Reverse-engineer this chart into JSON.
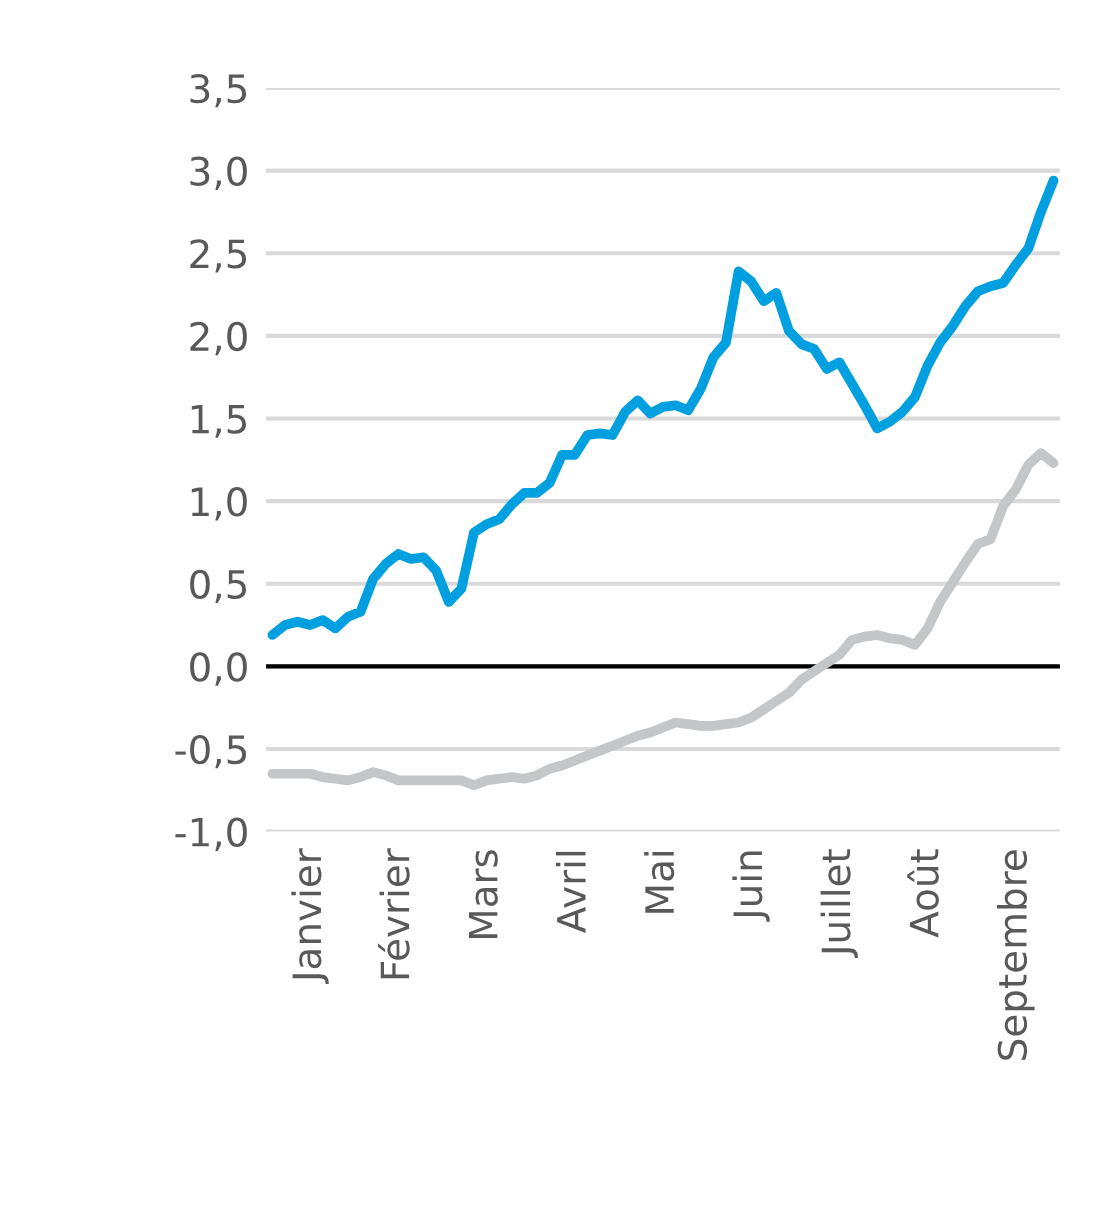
{
  "chart_data": {
    "type": "line",
    "ylim": [
      -1.0,
      3.5
    ],
    "yticks": [
      {
        "value": -1.0,
        "label": "-1,0"
      },
      {
        "value": -0.5,
        "label": "-0,5"
      },
      {
        "value": 0.0,
        "label": "0,0"
      },
      {
        "value": 0.5,
        "label": "0,5"
      },
      {
        "value": 1.0,
        "label": "1,0"
      },
      {
        "value": 1.5,
        "label": "1,5"
      },
      {
        "value": 2.0,
        "label": "2,0"
      },
      {
        "value": 2.5,
        "label": "2,5"
      },
      {
        "value": 3.0,
        "label": "3,0"
      },
      {
        "value": 3.5,
        "label": "3,5"
      }
    ],
    "categories": [
      null,
      null,
      null,
      "Janvier",
      null,
      null,
      null,
      null,
      null,
      null,
      "Février",
      null,
      null,
      null,
      null,
      null,
      null,
      "Mars",
      null,
      null,
      null,
      null,
      null,
      null,
      "Avril",
      null,
      null,
      null,
      null,
      null,
      null,
      "Mai",
      null,
      null,
      null,
      null,
      null,
      null,
      "Juin",
      null,
      null,
      null,
      null,
      null,
      null,
      "Juillet",
      null,
      null,
      null,
      null,
      null,
      null,
      "Août",
      null,
      null,
      null,
      null,
      null,
      null,
      "Septembre",
      null,
      null,
      null
    ],
    "grid": "y",
    "ref_lines": [
      {
        "axis": "y",
        "value": 0,
        "color": "#000000"
      }
    ],
    "series": [
      {
        "color": "#009fdf",
        "values": [
          0.19,
          0.25,
          0.27,
          0.25,
          0.28,
          0.23,
          0.3,
          0.33,
          0.53,
          0.62,
          0.68,
          0.65,
          0.66,
          0.58,
          0.39,
          0.47,
          0.81,
          0.86,
          0.89,
          0.98,
          1.05,
          1.05,
          1.11,
          1.28,
          1.28,
          1.4,
          1.41,
          1.4,
          1.54,
          1.61,
          1.53,
          1.57,
          1.58,
          1.55,
          1.68,
          1.87,
          1.96,
          2.39,
          2.33,
          2.21,
          2.26,
          2.03,
          1.95,
          1.92,
          1.8,
          1.84,
          1.71,
          1.58,
          1.44,
          1.48,
          1.54,
          1.63,
          1.82,
          1.96,
          2.06,
          2.18,
          2.27,
          2.3,
          2.32,
          2.43,
          2.53,
          2.75,
          2.94
        ]
      },
      {
        "color": "#c3c7c9",
        "values": [
          -0.65,
          -0.65,
          -0.65,
          -0.65,
          -0.67,
          -0.68,
          -0.69,
          -0.67,
          -0.64,
          -0.66,
          -0.69,
          -0.69,
          -0.69,
          -0.69,
          -0.69,
          -0.69,
          -0.72,
          -0.69,
          -0.68,
          -0.67,
          -0.68,
          -0.66,
          -0.62,
          -0.6,
          -0.57,
          -0.54,
          -0.51,
          -0.48,
          -0.45,
          -0.42,
          -0.4,
          -0.37,
          -0.34,
          -0.35,
          -0.36,
          -0.36,
          -0.35,
          -0.34,
          -0.31,
          -0.26,
          -0.21,
          -0.16,
          -0.08,
          -0.03,
          0.02,
          0.07,
          0.16,
          0.18,
          0.19,
          0.17,
          0.16,
          0.13,
          0.23,
          0.39,
          0.51,
          0.63,
          0.74,
          0.77,
          0.97,
          1.07,
          1.22,
          1.29,
          1.23
        ]
      }
    ]
  }
}
